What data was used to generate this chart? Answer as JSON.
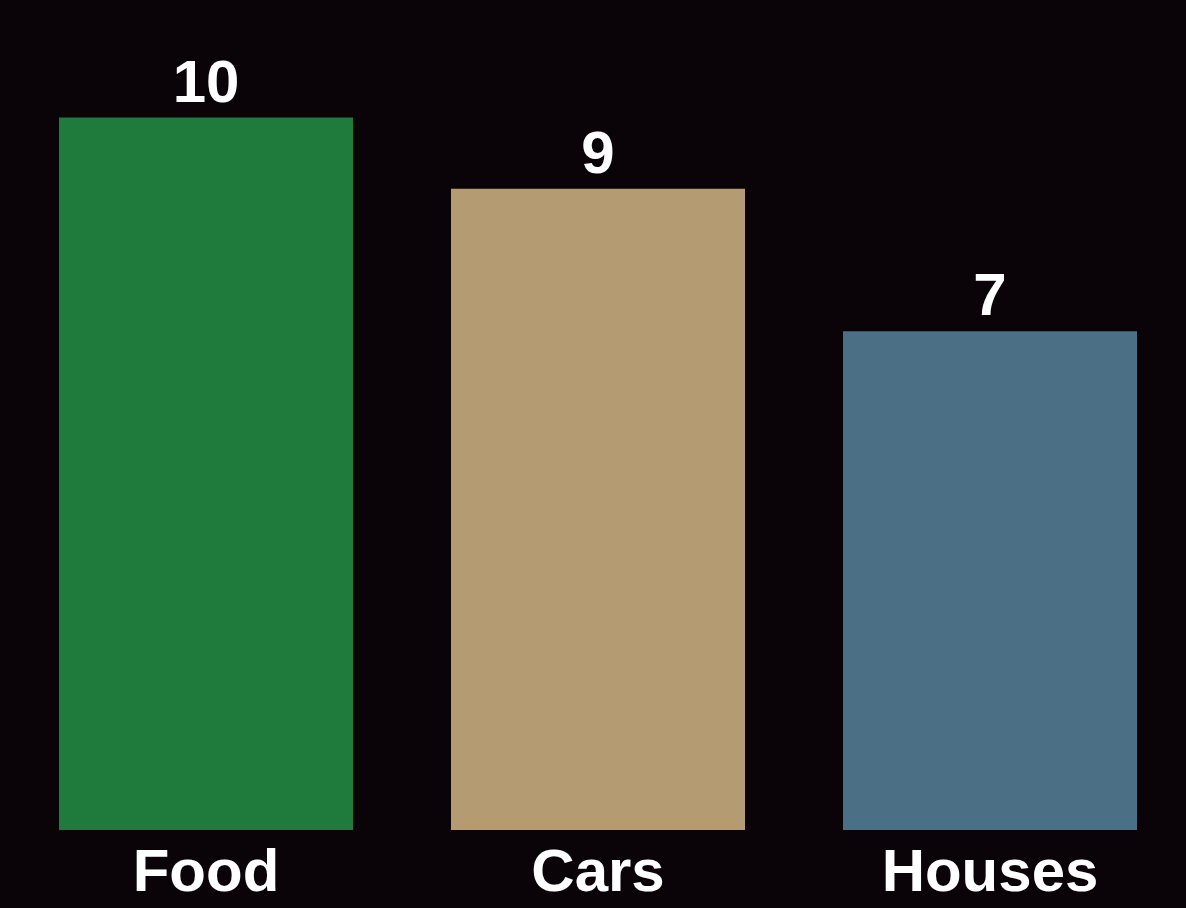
{
  "chart_data": {
    "type": "bar",
    "categories": [
      "Food",
      "Cars",
      "Houses"
    ],
    "values": [
      10,
      9,
      7
    ],
    "colors": [
      "#1e7b3b",
      "#b49b71",
      "#4b7085"
    ],
    "data_labels": true
  }
}
